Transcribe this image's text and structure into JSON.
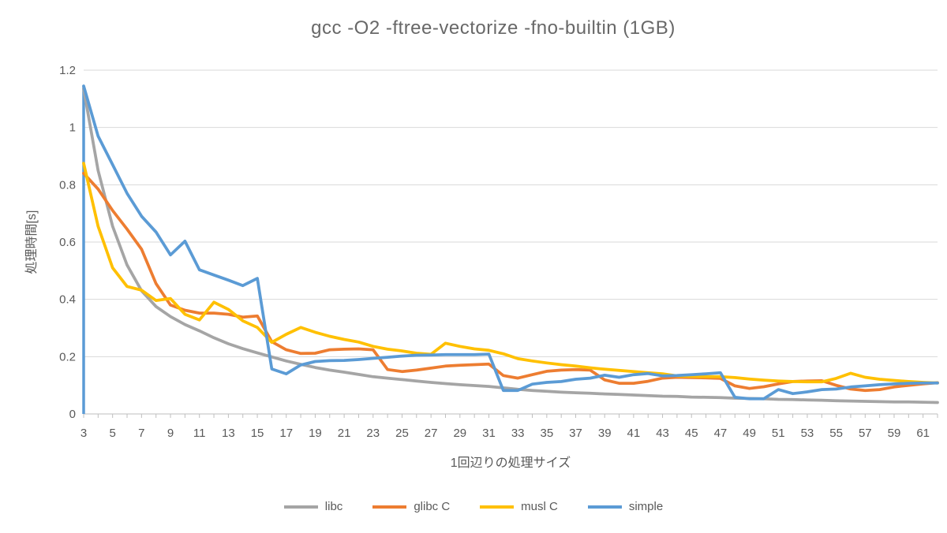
{
  "title": "gcc -O2 -ftree-vectorize -fno-builtin (1GB)",
  "chart_data": {
    "type": "line",
    "title": "gcc -O2 -ftree-vectorize -fno-builtin (1GB)",
    "xlabel": "1回辺りの処理サイズ",
    "ylabel": "処理時間[s]",
    "ylim": [
      0,
      1.2
    ],
    "ytick_labels": [
      "0",
      "0.2",
      "0.4",
      "0.6",
      "0.8",
      "1",
      "1.2"
    ],
    "xtick_labels": [
      3,
      5,
      7,
      9,
      11,
      13,
      15,
      17,
      19,
      21,
      23,
      25,
      27,
      29,
      31,
      33,
      35,
      37,
      39,
      41,
      43,
      45,
      47,
      49,
      51,
      53,
      55,
      57,
      59,
      61
    ],
    "grid": true,
    "legend_position": "bottom",
    "grid_color": "#d9d9d9",
    "axis_color": "#bfbfbf",
    "tick_text_color": "#595959",
    "x": [
      3,
      4,
      5,
      6,
      7,
      8,
      9,
      10,
      11,
      12,
      13,
      14,
      15,
      16,
      17,
      18,
      19,
      20,
      21,
      22,
      23,
      24,
      25,
      26,
      27,
      28,
      29,
      30,
      31,
      32,
      33,
      34,
      35,
      36,
      37,
      38,
      39,
      40,
      41,
      42,
      43,
      44,
      45,
      46,
      47,
      48,
      49,
      50,
      51,
      52,
      53,
      54,
      55,
      56,
      57,
      58,
      59,
      60,
      61,
      62
    ],
    "series": [
      {
        "name": "libc",
        "color": "#a5a5a5",
        "values": [
          1.135,
          0.85,
          0.655,
          0.52,
          0.43,
          0.375,
          0.34,
          0.312,
          0.29,
          0.266,
          0.245,
          0.228,
          0.213,
          0.199,
          0.185,
          0.173,
          0.162,
          0.153,
          0.146,
          0.138,
          0.13,
          0.125,
          0.12,
          0.115,
          0.11,
          0.106,
          0.102,
          0.099,
          0.096,
          0.091,
          0.086,
          0.082,
          0.079,
          0.076,
          0.074,
          0.072,
          0.07,
          0.068,
          0.066,
          0.064,
          0.062,
          0.061,
          0.059,
          0.058,
          0.057,
          0.055,
          0.054,
          0.053,
          0.051,
          0.05,
          0.049,
          0.048,
          0.046,
          0.045,
          0.044,
          0.043,
          0.042,
          0.042,
          0.041,
          0.04
        ]
      },
      {
        "name": "glibc C",
        "color": "#ed7d31",
        "values": [
          0.84,
          0.785,
          0.71,
          0.645,
          0.575,
          0.455,
          0.38,
          0.362,
          0.352,
          0.352,
          0.348,
          0.338,
          0.342,
          0.252,
          0.224,
          0.211,
          0.212,
          0.224,
          0.226,
          0.227,
          0.224,
          0.155,
          0.148,
          0.153,
          0.16,
          0.167,
          0.17,
          0.172,
          0.174,
          0.134,
          0.125,
          0.137,
          0.149,
          0.153,
          0.155,
          0.153,
          0.119,
          0.107,
          0.107,
          0.114,
          0.125,
          0.128,
          0.127,
          0.126,
          0.124,
          0.098,
          0.089,
          0.095,
          0.105,
          0.113,
          0.115,
          0.116,
          0.1,
          0.087,
          0.082,
          0.085,
          0.094,
          0.1,
          0.105,
          0.109
        ]
      },
      {
        "name": "musl C",
        "color": "#ffc000",
        "values": [
          0.875,
          0.655,
          0.51,
          0.445,
          0.432,
          0.396,
          0.403,
          0.348,
          0.328,
          0.39,
          0.365,
          0.325,
          0.302,
          0.25,
          0.278,
          0.302,
          0.285,
          0.271,
          0.26,
          0.251,
          0.236,
          0.226,
          0.22,
          0.212,
          0.208,
          0.247,
          0.236,
          0.227,
          0.222,
          0.21,
          0.193,
          0.185,
          0.178,
          0.172,
          0.167,
          0.161,
          0.156,
          0.152,
          0.148,
          0.144,
          0.14,
          0.133,
          0.131,
          0.13,
          0.13,
          0.127,
          0.122,
          0.118,
          0.115,
          0.113,
          0.112,
          0.112,
          0.124,
          0.142,
          0.128,
          0.121,
          0.117,
          0.113,
          0.11,
          0.108
        ]
      },
      {
        "name": "simple",
        "color": "#5b9bd5",
        "values": [
          1.145,
          0.97,
          0.87,
          0.77,
          0.69,
          0.635,
          0.555,
          0.603,
          0.503,
          0.485,
          0.467,
          0.448,
          0.473,
          0.157,
          0.14,
          0.171,
          0.183,
          0.186,
          0.187,
          0.19,
          0.194,
          0.198,
          0.202,
          0.205,
          0.206,
          0.207,
          0.207,
          0.207,
          0.209,
          0.082,
          0.082,
          0.104,
          0.11,
          0.113,
          0.121,
          0.125,
          0.135,
          0.128,
          0.137,
          0.141,
          0.133,
          0.134,
          0.137,
          0.14,
          0.144,
          0.058,
          0.053,
          0.053,
          0.085,
          0.071,
          0.077,
          0.085,
          0.087,
          0.094,
          0.098,
          0.102,
          0.105,
          0.107,
          0.108,
          0.108
        ]
      }
    ],
    "axis_spike_series": "simple"
  }
}
